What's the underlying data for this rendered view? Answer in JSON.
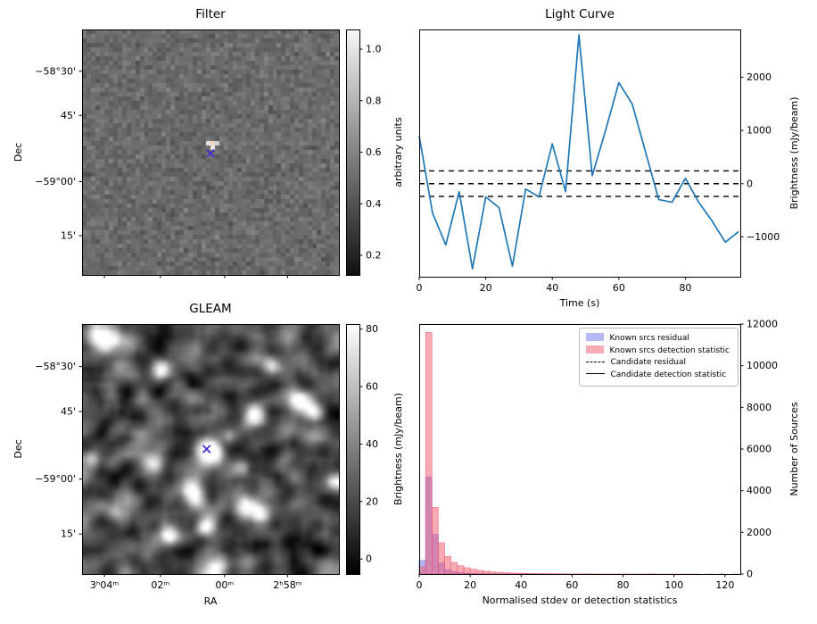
{
  "figure": {
    "background": "#ffffff"
  },
  "chart_data": [
    {
      "id": "filter",
      "type": "heatmap",
      "title": "Filter",
      "ylabel": "Dec",
      "yticks": [
        "−58°30'",
        "45'",
        "−59°00'",
        "15'"
      ],
      "ytick_pos": [
        0.17,
        0.35,
        0.62,
        0.84
      ],
      "xtick_pos": [
        0.087,
        0.305,
        0.555,
        0.8
      ],
      "colorbar": {
        "label": "arbitrary units",
        "ticks": [
          "1.0",
          "0.8",
          "0.6",
          "0.4",
          "0.2"
        ],
        "tick_pos": [
          0.08,
          0.29,
          0.5,
          0.71,
          0.92
        ]
      },
      "marker": {
        "symbol": "x",
        "color": "#4a2bd0",
        "x": 0.5,
        "y": 0.505
      },
      "description": "pixelated grayscale noise map with bright candidate pixel at centre"
    },
    {
      "id": "light_curve",
      "type": "line",
      "title": "Light Curve",
      "xlabel": "Time (s)",
      "ylabel": "Brightness (mJy/beam)",
      "line_color": "#1f77b4",
      "x": [
        0,
        4,
        8,
        12,
        16,
        20,
        24,
        28,
        32,
        36,
        40,
        44,
        48,
        52,
        56,
        60,
        64,
        68,
        72,
        76,
        80,
        84,
        88,
        92,
        96
      ],
      "y": [
        900,
        -550,
        -1150,
        -150,
        -1600,
        -250,
        -450,
        -1550,
        -100,
        -250,
        750,
        -150,
        2800,
        150,
        1000,
        1900,
        1500,
        600,
        -300,
        -350,
        100,
        -350,
        -700,
        -1100,
        -900
      ],
      "xlim": [
        0,
        96.5
      ],
      "ylim": [
        -1750,
        2900
      ],
      "xticks": [
        0,
        20,
        40,
        60,
        80
      ],
      "yticks": [
        -1000,
        0,
        1000,
        2000
      ],
      "dashed_lines": [
        240,
        0,
        -240
      ]
    },
    {
      "id": "gleam",
      "type": "heatmap",
      "title": "GLEAM",
      "xlabel": "RA",
      "ylabel": "Dec",
      "xticks": [
        "3ʰ04ᵐ",
        "02ᵐ",
        "00ᵐ",
        "2ʰ58ᵐ"
      ],
      "xtick_pos": [
        0.087,
        0.305,
        0.555,
        0.8
      ],
      "yticks": [
        "−58°30'",
        "45'",
        "−59°00'",
        "15'"
      ],
      "ytick_pos": [
        0.17,
        0.35,
        0.62,
        0.84
      ],
      "colorbar": {
        "label": "Brightness (mJy/beam)",
        "ticks": [
          "80",
          "60",
          "40",
          "20",
          "0"
        ],
        "tick_pos": [
          0.02,
          0.25,
          0.48,
          0.71,
          0.94
        ]
      },
      "marker": {
        "symbol": "x",
        "color": "#4a2bd0",
        "x": 0.485,
        "y": 0.5
      },
      "sources": [
        [
          0.075,
          0.05,
          1.0,
          1.9
        ],
        [
          0.3,
          0.17,
          0.75,
          1.3
        ],
        [
          0.73,
          0.16,
          0.6,
          1.1
        ],
        [
          0.84,
          0.3,
          0.75,
          1.3
        ],
        [
          0.895,
          0.345,
          0.65,
          1.1
        ],
        [
          0.665,
          0.35,
          0.75,
          1.3
        ],
        [
          0.485,
          0.5,
          1.15,
          1.6
        ],
        [
          0.275,
          0.545,
          0.7,
          1.3
        ],
        [
          0.42,
          0.665,
          0.85,
          1.4
        ],
        [
          0.625,
          0.715,
          0.85,
          1.4
        ],
        [
          0.685,
          0.75,
          0.75,
          1.2
        ],
        [
          0.475,
          0.8,
          0.8,
          1.3
        ],
        [
          0.33,
          0.835,
          0.65,
          1.1
        ],
        [
          0.52,
          0.97,
          0.8,
          1.5
        ],
        [
          0.975,
          0.62,
          0.55,
          1.1
        ],
        [
          0.03,
          0.53,
          0.5,
          1.1
        ],
        [
          0.115,
          0.74,
          0.45,
          1.0
        ],
        [
          0.56,
          0.44,
          0.5,
          1.0
        ],
        [
          0.615,
          0.57,
          0.45,
          1.0
        ]
      ],
      "description": "smoothed grayscale sky image with bright point sources; candidate marked at centre"
    },
    {
      "id": "histogram",
      "type": "bar",
      "title": "",
      "xlabel": "Normalised stdev or detection statistics",
      "ylabel": "Number of Sources",
      "xlim": [
        0,
        126
      ],
      "ylim": [
        0,
        12000
      ],
      "xticks": [
        0,
        20,
        40,
        60,
        80,
        100,
        120
      ],
      "yticks": [
        0,
        2000,
        4000,
        6000,
        8000,
        10000,
        12000
      ],
      "bin_width": 2.5,
      "series": [
        {
          "name": "Known srcs residual",
          "color": "#4d52e8",
          "alpha": 0.42,
          "values": [
            650,
            4650,
            1900,
            520,
            210,
            110,
            65,
            40,
            26,
            18,
            12,
            9,
            6,
            5,
            4,
            3,
            2,
            2,
            1,
            1,
            1,
            1,
            0,
            1,
            0,
            0,
            1,
            0,
            0,
            0,
            0,
            0,
            0,
            0,
            0,
            0,
            1,
            0,
            0,
            0,
            0,
            0,
            0,
            0,
            0,
            0,
            0,
            0,
            0,
            0
          ]
        },
        {
          "name": "Known srcs detection statistic",
          "color": "#f0566a",
          "alpha": 0.5,
          "values": [
            350,
            11600,
            3200,
            1500,
            850,
            560,
            400,
            300,
            230,
            175,
            135,
            105,
            82,
            65,
            52,
            42,
            34,
            28,
            23,
            19,
            16,
            13,
            11,
            9,
            8,
            7,
            6,
            5,
            4,
            4,
            3,
            3,
            2,
            2,
            2,
            2,
            1,
            1,
            1,
            1,
            1,
            1,
            1,
            1,
            0,
            1,
            0,
            1,
            0,
            1
          ]
        }
      ],
      "legend": [
        {
          "type": "patch",
          "color": "#b5b9f6",
          "label": "Known srcs residual"
        },
        {
          "type": "patch",
          "color": "#faacb4",
          "label": "Known srcs detection statistic"
        },
        {
          "type": "dashed",
          "color": "#000000",
          "label": "Candidate residual"
        },
        {
          "type": "solid",
          "color": "#000000",
          "label": "Candidate detection statistic"
        }
      ]
    }
  ]
}
